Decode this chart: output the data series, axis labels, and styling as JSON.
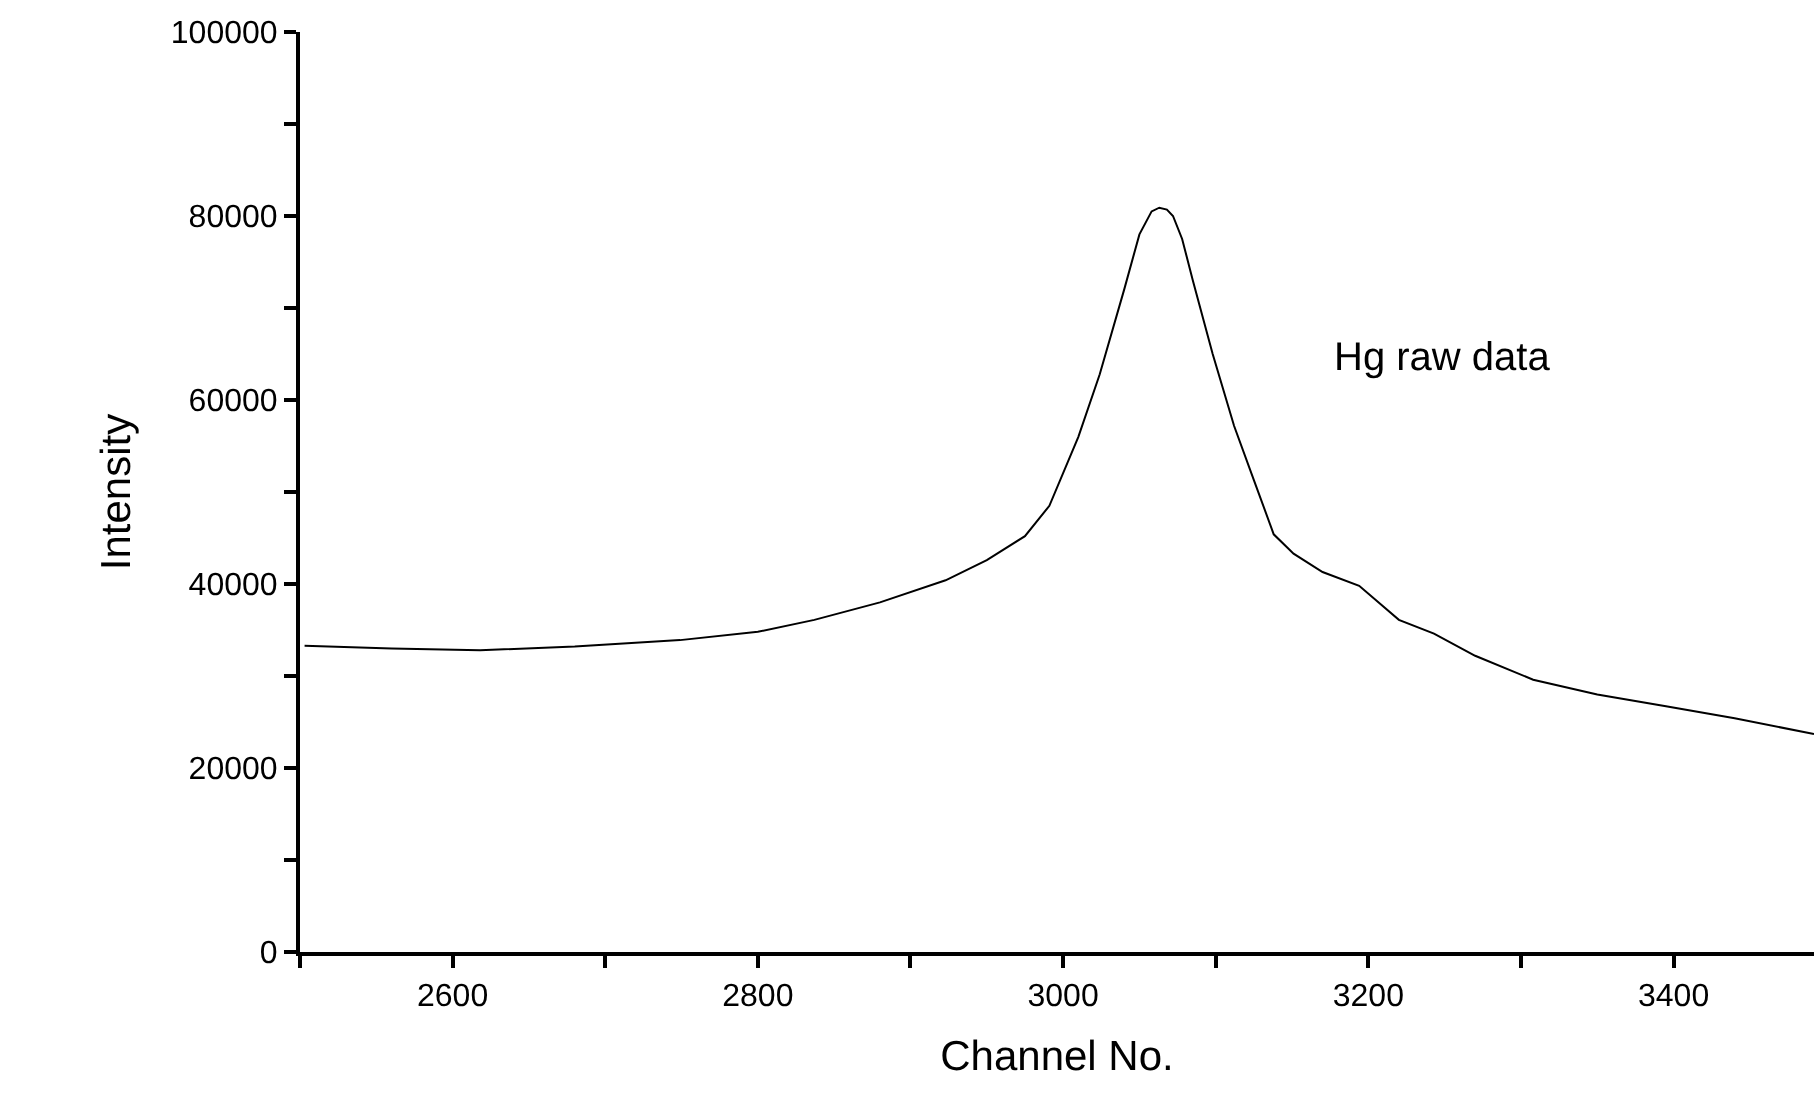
{
  "chart_data": {
    "type": "line",
    "xlabel": "Channel No.",
    "ylabel": "Intensity",
    "annotations": [
      "Hg raw data"
    ],
    "x": [
      2503,
      2560,
      2618,
      2680,
      2749,
      2800,
      2837,
      2880,
      2923,
      2950,
      2975,
      2991,
      3010,
      3024,
      3040,
      3050,
      3058,
      3063,
      3068,
      3072,
      3078,
      3085,
      3098,
      3112,
      3125,
      3138,
      3146,
      3151,
      3170,
      3194,
      3220,
      3243,
      3270,
      3308,
      3350,
      3395,
      3440,
      3492
    ],
    "series": [
      {
        "color": "#000000",
        "values": [
          33300,
          33000,
          32800,
          33200,
          33900,
          34800,
          36100,
          38000,
          40400,
          42600,
          45200,
          48500,
          56000,
          62800,
          72000,
          78000,
          80500,
          80900,
          80700,
          80000,
          77500,
          73000,
          65000,
          57200,
          51300,
          45400,
          44100,
          43300,
          41300,
          39800,
          36100,
          34600,
          32200,
          29600,
          28000,
          26700,
          25400,
          23700
        ]
      }
    ],
    "xlim": [
      2500,
      3492
    ],
    "ylim": [
      0,
      100000
    ],
    "xticks": [
      {
        "value": 2500,
        "label": null
      },
      2600,
      {
        "value": 2700,
        "label": null
      },
      2800,
      {
        "value": 2900,
        "label": null
      },
      3000,
      {
        "value": 3100,
        "label": null
      },
      3200,
      {
        "value": 3300,
        "label": null
      },
      3400
    ],
    "yticks": [
      0,
      {
        "value": 10000,
        "label": null
      },
      20000,
      {
        "value": 30000,
        "label": null
      },
      40000,
      {
        "value": 50000,
        "label": null
      },
      60000,
      {
        "value": 70000,
        "label": null
      },
      80000,
      {
        "value": 90000,
        "label": null
      },
      100000
    ],
    "grid": false,
    "marker": "none",
    "line_style": "solid"
  }
}
